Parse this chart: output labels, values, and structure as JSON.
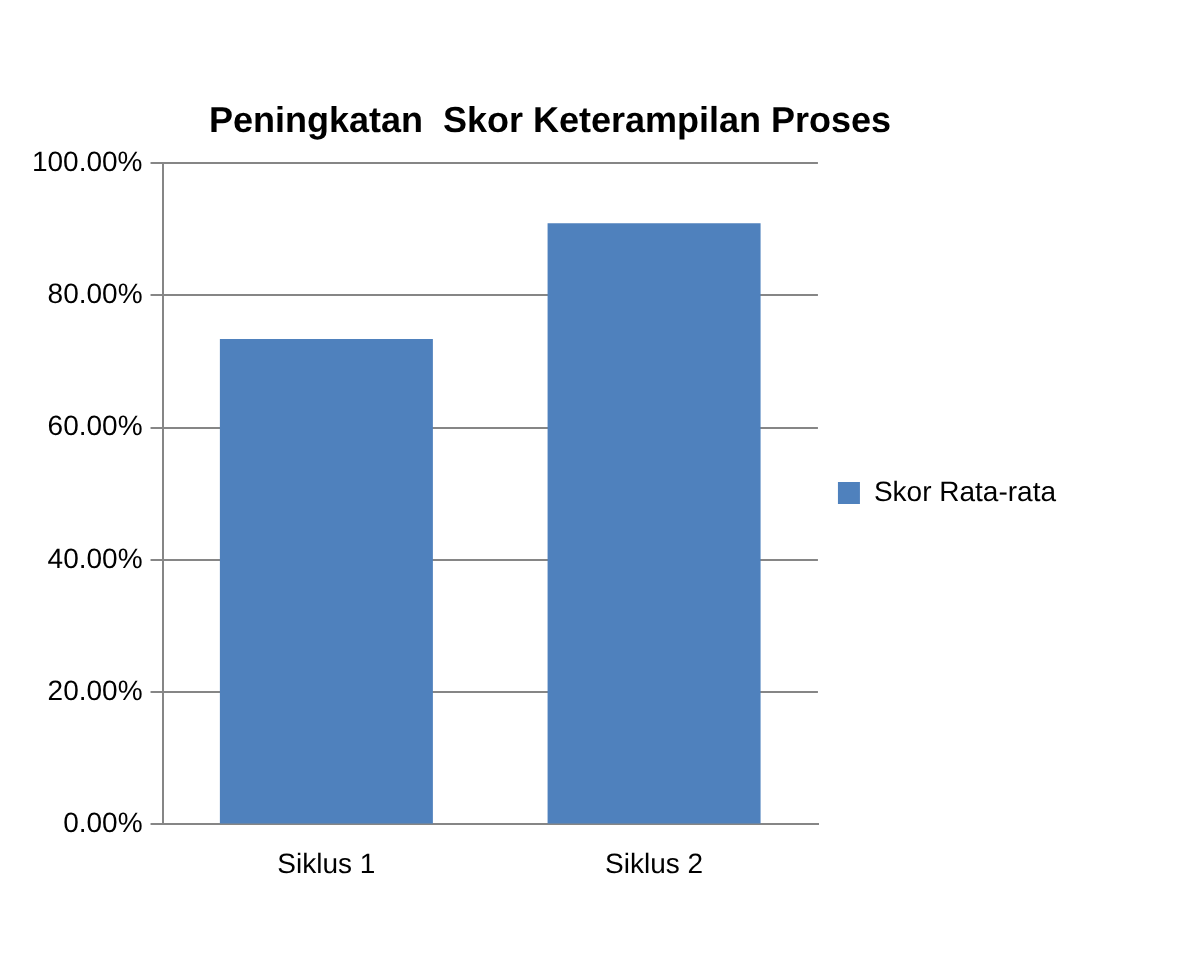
{
  "chart_data": {
    "type": "bar",
    "title": "Peningkatan  Skor Keterampilan Proses",
    "categories": [
      "Siklus 1",
      "Siklus 2"
    ],
    "series": [
      {
        "name": "Skor Rata-rata",
        "color": "#4f81bd",
        "values": [
          73.4,
          90.9
        ]
      }
    ],
    "ylim": [
      0,
      100
    ],
    "yticks": [
      {
        "value": 0,
        "label": "0.00%"
      },
      {
        "value": 20,
        "label": "20.00%"
      },
      {
        "value": 40,
        "label": "40.00%"
      },
      {
        "value": 60,
        "label": "60.00%"
      },
      {
        "value": 80,
        "label": "80.00%"
      },
      {
        "value": 100,
        "label": "100.00%"
      }
    ],
    "grid": "y",
    "legend": "right"
  }
}
